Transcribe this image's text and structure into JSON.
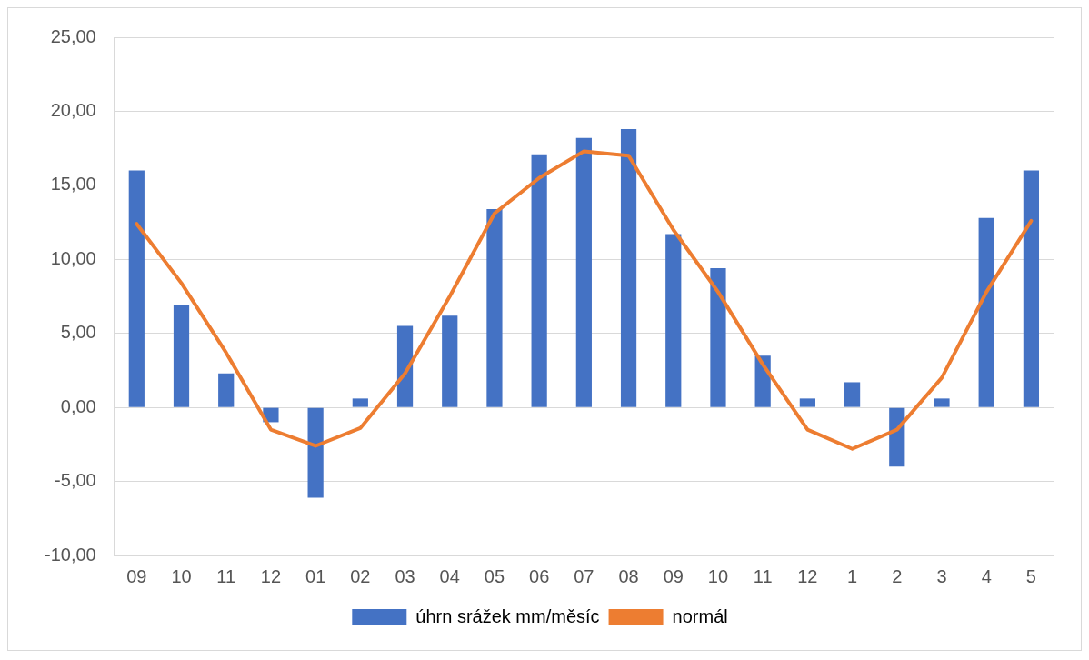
{
  "chart_data": {
    "type": "bar",
    "categories": [
      "09",
      "10",
      "11",
      "12",
      "01",
      "02",
      "03",
      "04",
      "05",
      "06",
      "07",
      "08",
      "09",
      "10",
      "11",
      "12",
      "1",
      "2",
      "3",
      "4",
      "5"
    ],
    "series": [
      {
        "name": "úhrn srážek mm/měsíc",
        "color": "#4472c4",
        "values": [
          16.0,
          6.9,
          2.3,
          -1.0,
          -6.1,
          0.6,
          5.5,
          6.2,
          13.4,
          17.1,
          18.2,
          18.8,
          11.7,
          9.4,
          3.5,
          0.6,
          1.7,
          -4.0,
          0.6,
          12.8,
          16.0
        ]
      },
      {
        "name": "normál",
        "type": "line",
        "color": "#ed7d31",
        "values": [
          12.4,
          8.4,
          3.7,
          -1.5,
          -2.6,
          -1.4,
          2.3,
          7.5,
          13.1,
          15.5,
          17.3,
          17.0,
          12.0,
          7.8,
          2.9,
          -1.5,
          -2.8,
          -1.5,
          2.0,
          7.8,
          12.6
        ]
      }
    ],
    "ylim": [
      -10,
      25
    ],
    "yticks": [
      {
        "value": -10,
        "label": "-10,00"
      },
      {
        "value": -5,
        "label": "-5,00"
      },
      {
        "value": 0,
        "label": "0,00"
      },
      {
        "value": 5,
        "label": "5,00"
      },
      {
        "value": 10,
        "label": "10,00"
      },
      {
        "value": 15,
        "label": "15,00"
      },
      {
        "value": 20,
        "label": "20,00"
      },
      {
        "value": 25,
        "label": "25,00"
      }
    ],
    "grid": "y",
    "legend": "bottom",
    "marker": "none",
    "line_style": "solid"
  }
}
